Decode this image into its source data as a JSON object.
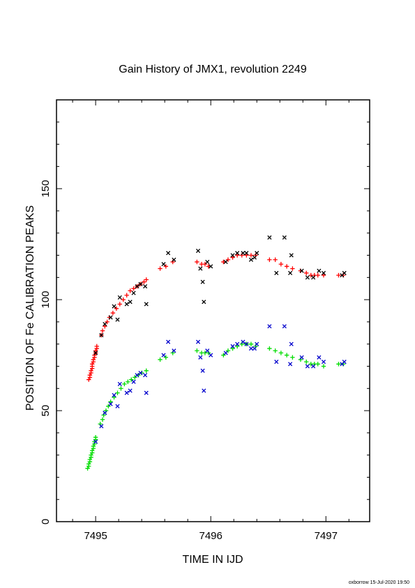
{
  "chart_data": {
    "type": "scatter",
    "title": "Gain History of JMX1, revolution 2249",
    "xlabel": "TIME IN IJD",
    "ylabel": "POSITION OF Fe CALIBRATION PEAKS",
    "xlim": [
      7494.66,
      7497.38
    ],
    "ylim": [
      0,
      190
    ],
    "x_ticks": [
      "7495",
      "7496",
      "7497"
    ],
    "y_ticks": [
      "0",
      "50",
      "100",
      "150"
    ],
    "grid": false,
    "legend": "none",
    "series": [
      {
        "marker": "plus",
        "color": "#ff0000",
        "points": [
          [
            7494.94,
            64
          ],
          [
            7494.95,
            65
          ],
          [
            7494.95,
            66
          ],
          [
            7494.96,
            67
          ],
          [
            7494.96,
            68
          ],
          [
            7494.97,
            69
          ],
          [
            7494.97,
            70
          ],
          [
            7494.97,
            71
          ],
          [
            7494.98,
            72
          ],
          [
            7494.98,
            73
          ],
          [
            7494.99,
            74
          ],
          [
            7494.99,
            75
          ],
          [
            7495.0,
            76
          ],
          [
            7495.0,
            77
          ],
          [
            7495.01,
            78
          ],
          [
            7495.01,
            79
          ],
          [
            7495.05,
            84
          ],
          [
            7495.06,
            86
          ],
          [
            7495.08,
            88
          ],
          [
            7495.1,
            90
          ],
          [
            7495.12,
            92
          ],
          [
            7495.15,
            94
          ],
          [
            7495.18,
            96
          ],
          [
            7495.21,
            98
          ],
          [
            7495.24,
            100
          ],
          [
            7495.27,
            102
          ],
          [
            7495.3,
            104
          ],
          [
            7495.33,
            105
          ],
          [
            7495.36,
            106
          ],
          [
            7495.39,
            107
          ],
          [
            7495.42,
            108
          ],
          [
            7495.44,
            109
          ],
          [
            7495.56,
            114
          ],
          [
            7495.61,
            115
          ],
          [
            7495.67,
            117
          ],
          [
            7495.88,
            117
          ],
          [
            7495.92,
            116
          ],
          [
            7495.95,
            116
          ],
          [
            7495.98,
            115
          ],
          [
            7496.11,
            117
          ],
          [
            7496.15,
            118
          ],
          [
            7496.19,
            119
          ],
          [
            7496.23,
            120
          ],
          [
            7496.27,
            120
          ],
          [
            7496.31,
            120
          ],
          [
            7496.35,
            120
          ],
          [
            7496.39,
            120
          ],
          [
            7496.51,
            118
          ],
          [
            7496.56,
            118
          ],
          [
            7496.61,
            116
          ],
          [
            7496.66,
            115
          ],
          [
            7496.71,
            114
          ],
          [
            7496.78,
            113
          ],
          [
            7496.83,
            112
          ],
          [
            7496.87,
            111
          ],
          [
            7496.9,
            111
          ],
          [
            7496.93,
            111
          ],
          [
            7496.98,
            111
          ],
          [
            7497.11,
            111
          ],
          [
            7497.15,
            111
          ]
        ]
      },
      {
        "marker": "plus",
        "color": "#00dd00",
        "points": [
          [
            7494.93,
            24
          ],
          [
            7494.94,
            25
          ],
          [
            7494.94,
            26
          ],
          [
            7494.95,
            27
          ],
          [
            7494.95,
            28
          ],
          [
            7494.96,
            29
          ],
          [
            7494.96,
            30
          ],
          [
            7494.97,
            31
          ],
          [
            7494.97,
            32
          ],
          [
            7494.98,
            33
          ],
          [
            7494.98,
            34
          ],
          [
            7494.99,
            35
          ],
          [
            7494.99,
            36
          ],
          [
            7495.0,
            37
          ],
          [
            7495.0,
            38
          ],
          [
            7495.04,
            44
          ],
          [
            7495.06,
            46
          ],
          [
            7495.07,
            48
          ],
          [
            7495.09,
            50
          ],
          [
            7495.11,
            52
          ],
          [
            7495.13,
            54
          ],
          [
            7495.16,
            56
          ],
          [
            7495.19,
            58
          ],
          [
            7495.22,
            60
          ],
          [
            7495.25,
            62
          ],
          [
            7495.28,
            63
          ],
          [
            7495.31,
            64
          ],
          [
            7495.34,
            65
          ],
          [
            7495.37,
            66
          ],
          [
            7495.4,
            67
          ],
          [
            7495.44,
            68
          ],
          [
            7495.56,
            73
          ],
          [
            7495.61,
            74
          ],
          [
            7495.67,
            76
          ],
          [
            7495.88,
            77
          ],
          [
            7495.92,
            76
          ],
          [
            7495.95,
            76
          ],
          [
            7495.98,
            76
          ],
          [
            7496.11,
            75
          ],
          [
            7496.15,
            77
          ],
          [
            7496.19,
            78
          ],
          [
            7496.23,
            79
          ],
          [
            7496.27,
            80
          ],
          [
            7496.31,
            80
          ],
          [
            7496.35,
            80
          ],
          [
            7496.39,
            79
          ],
          [
            7496.51,
            78
          ],
          [
            7496.56,
            77
          ],
          [
            7496.61,
            76
          ],
          [
            7496.66,
            75
          ],
          [
            7496.71,
            74
          ],
          [
            7496.78,
            73
          ],
          [
            7496.83,
            72
          ],
          [
            7496.87,
            71
          ],
          [
            7496.9,
            71
          ],
          [
            7496.93,
            71
          ],
          [
            7496.98,
            70
          ],
          [
            7497.11,
            71
          ],
          [
            7497.15,
            71
          ]
        ]
      },
      {
        "marker": "x",
        "color": "#000000",
        "points": [
          [
            7495.0,
            76
          ],
          [
            7495.05,
            84
          ],
          [
            7495.08,
            89
          ],
          [
            7495.13,
            92
          ],
          [
            7495.16,
            97
          ],
          [
            7495.19,
            91
          ],
          [
            7495.21,
            101
          ],
          [
            7495.27,
            98
          ],
          [
            7495.3,
            99
          ],
          [
            7495.33,
            103
          ],
          [
            7495.36,
            106
          ],
          [
            7495.39,
            107
          ],
          [
            7495.43,
            106
          ],
          [
            7495.44,
            98
          ],
          [
            7495.59,
            116
          ],
          [
            7495.63,
            121
          ],
          [
            7495.68,
            118
          ],
          [
            7495.89,
            122
          ],
          [
            7495.91,
            114
          ],
          [
            7495.93,
            108
          ],
          [
            7495.94,
            99
          ],
          [
            7495.97,
            117
          ],
          [
            7496.0,
            115
          ],
          [
            7496.13,
            117
          ],
          [
            7496.19,
            120
          ],
          [
            7496.23,
            121
          ],
          [
            7496.28,
            121
          ],
          [
            7496.31,
            121
          ],
          [
            7496.35,
            118
          ],
          [
            7496.38,
            119
          ],
          [
            7496.4,
            121
          ],
          [
            7496.51,
            128
          ],
          [
            7496.57,
            112
          ],
          [
            7496.64,
            128
          ],
          [
            7496.69,
            112
          ],
          [
            7496.7,
            120
          ],
          [
            7496.79,
            113
          ],
          [
            7496.84,
            110
          ],
          [
            7496.89,
            110
          ],
          [
            7496.94,
            113
          ],
          [
            7496.98,
            112
          ],
          [
            7497.14,
            111
          ],
          [
            7497.16,
            112
          ]
        ]
      },
      {
        "marker": "x",
        "color": "#0000cc",
        "points": [
          [
            7495.0,
            36
          ],
          [
            7495.05,
            43
          ],
          [
            7495.08,
            49
          ],
          [
            7495.13,
            53
          ],
          [
            7495.16,
            57
          ],
          [
            7495.19,
            52
          ],
          [
            7495.21,
            62
          ],
          [
            7495.27,
            58
          ],
          [
            7495.3,
            59
          ],
          [
            7495.33,
            63
          ],
          [
            7495.36,
            66
          ],
          [
            7495.39,
            67
          ],
          [
            7495.43,
            66
          ],
          [
            7495.44,
            58
          ],
          [
            7495.59,
            75
          ],
          [
            7495.63,
            81
          ],
          [
            7495.68,
            77
          ],
          [
            7495.89,
            81
          ],
          [
            7495.91,
            74
          ],
          [
            7495.93,
            68
          ],
          [
            7495.94,
            59
          ],
          [
            7495.97,
            77
          ],
          [
            7496.0,
            75
          ],
          [
            7496.13,
            76
          ],
          [
            7496.19,
            79
          ],
          [
            7496.23,
            80
          ],
          [
            7496.28,
            81
          ],
          [
            7496.31,
            80
          ],
          [
            7496.35,
            78
          ],
          [
            7496.38,
            78
          ],
          [
            7496.4,
            80
          ],
          [
            7496.51,
            88
          ],
          [
            7496.57,
            72
          ],
          [
            7496.64,
            88
          ],
          [
            7496.69,
            71
          ],
          [
            7496.7,
            80
          ],
          [
            7496.79,
            74
          ],
          [
            7496.84,
            70
          ],
          [
            7496.89,
            70
          ],
          [
            7496.94,
            74
          ],
          [
            7496.98,
            72
          ],
          [
            7497.14,
            71
          ],
          [
            7497.16,
            72
          ]
        ]
      }
    ]
  },
  "footer": "oxborrow 15-Jul-2020 19:50"
}
